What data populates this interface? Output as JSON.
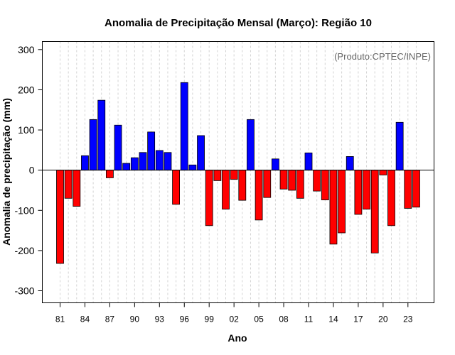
{
  "chart_data": {
    "type": "bar",
    "title": "Anomalia de Precipitação Mensal (Março): Região 10",
    "xlabel": "Ano",
    "ylabel": "Anomalia de precipitação (mm)",
    "annotation": "(Produto:CPTEC/INPE)",
    "ylim": [
      -330,
      320
    ],
    "yticks": [
      -300,
      -200,
      -100,
      0,
      100,
      200,
      300
    ],
    "xtick_labels": [
      "81",
      "84",
      "87",
      "90",
      "93",
      "96",
      "99",
      "02",
      "05",
      "08",
      "11",
      "14",
      "17",
      "20",
      "23"
    ],
    "xtick_every": 3,
    "grid": "vertical-dashed",
    "colors": {
      "positive": "#0000ff",
      "negative": "#ff0000",
      "outline": "#000000"
    },
    "years": [
      1981,
      1982,
      1983,
      1984,
      1985,
      1986,
      1987,
      1988,
      1989,
      1990,
      1991,
      1992,
      1993,
      1994,
      1995,
      1996,
      1997,
      1998,
      1999,
      2000,
      2001,
      2002,
      2003,
      2004,
      2005,
      2006,
      2007,
      2008,
      2009,
      2010,
      2011,
      2012,
      2013,
      2014,
      2015,
      2016,
      2017,
      2018,
      2019,
      2020,
      2021,
      2022,
      2023,
      2024
    ],
    "values": [
      -232,
      -70,
      -90,
      36,
      126,
      174,
      -19,
      112,
      17,
      31,
      44,
      95,
      49,
      44,
      -85,
      218,
      13,
      86,
      -138,
      -26,
      -97,
      -23,
      -75,
      126,
      -124,
      -68,
      28,
      -47,
      -50,
      -70,
      43,
      -52,
      -74,
      -184,
      -156,
      34,
      -110,
      -97,
      -206,
      -12,
      -138,
      119,
      -95,
      -92
    ]
  }
}
